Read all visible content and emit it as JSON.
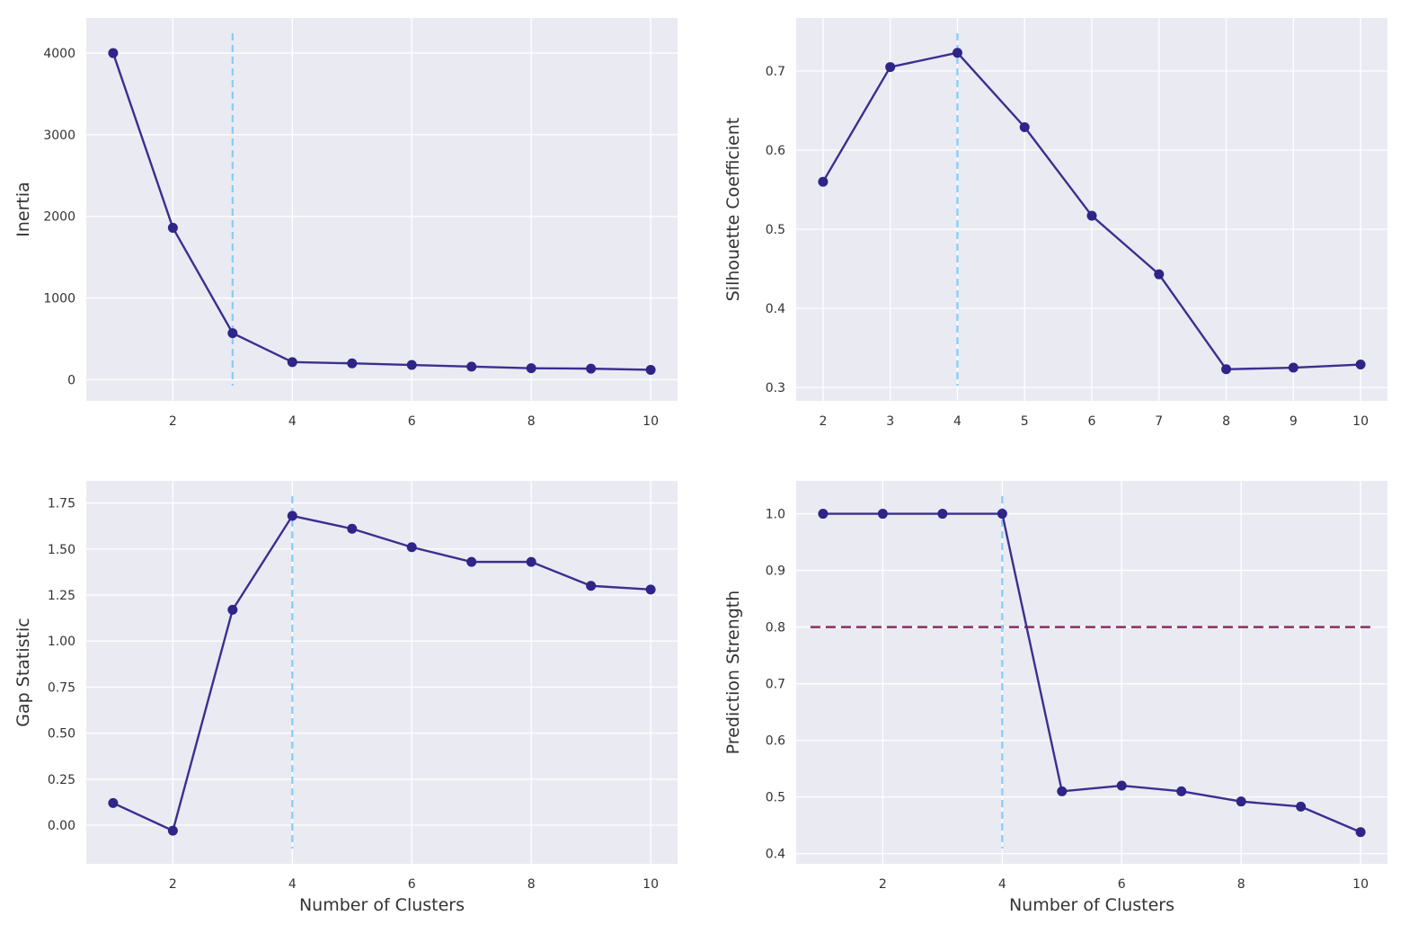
{
  "chart_data": [
    {
      "type": "line",
      "panel": "top-left",
      "x": [
        1,
        2,
        3,
        4,
        5,
        6,
        7,
        8,
        9,
        10
      ],
      "values": [
        4000,
        1860,
        570,
        215,
        200,
        180,
        160,
        140,
        135,
        120
      ],
      "xticks": [
        "2",
        "4",
        "6",
        "8",
        "10"
      ],
      "yticks": [
        "0",
        "1000",
        "2000",
        "3000",
        "4000"
      ],
      "xlabel": "",
      "ylabel": "Inertia",
      "xlim": [
        0.55,
        10.45
      ],
      "ylim": [
        -260,
        4430
      ],
      "grid": true,
      "colors": {
        "line": "#3b2f8f",
        "marker": "#2f2487",
        "vline": "#87cefa",
        "background": "#eaeaf2"
      },
      "vline_x": 3,
      "hline_y": null
    },
    {
      "type": "line",
      "panel": "top-right",
      "x": [
        2,
        3,
        4,
        5,
        6,
        7,
        8,
        9,
        10
      ],
      "values": [
        0.56,
        0.705,
        0.723,
        0.629,
        0.517,
        0.443,
        0.323,
        0.325,
        0.329
      ],
      "xticks": [
        "2",
        "3",
        "4",
        "5",
        "6",
        "7",
        "8",
        "9",
        "10"
      ],
      "yticks": [
        "0.3",
        "0.4",
        "0.5",
        "0.6",
        "0.7"
      ],
      "xlabel": "",
      "ylabel": "Silhouette Coefficient",
      "xlim": [
        1.6,
        10.4
      ],
      "ylim": [
        0.283,
        0.767
      ],
      "grid": true,
      "colors": {
        "line": "#3b2f8f",
        "marker": "#2f2487",
        "vline": "#87cefa",
        "background": "#eaeaf2"
      },
      "vline_x": 4,
      "hline_y": null
    },
    {
      "type": "line",
      "panel": "bottom-left",
      "x": [
        1,
        2,
        3,
        4,
        5,
        6,
        7,
        8,
        9,
        10
      ],
      "values": [
        0.12,
        -0.03,
        1.17,
        1.68,
        1.61,
        1.51,
        1.43,
        1.43,
        1.3,
        1.28
      ],
      "xticks": [
        "2",
        "4",
        "6",
        "8",
        "10"
      ],
      "yticks": [
        "0.00",
        "0.25",
        "0.50",
        "0.75",
        "1.00",
        "1.25",
        "1.50",
        "1.75"
      ],
      "xlabel": "Number of Clusters",
      "ylabel": "Gap Statistic",
      "xlim": [
        0.55,
        10.45
      ],
      "ylim": [
        -0.21,
        1.87
      ],
      "grid": true,
      "colors": {
        "line": "#3b2f8f",
        "marker": "#2f2487",
        "vline": "#87cefa",
        "background": "#eaeaf2"
      },
      "vline_x": 4,
      "hline_y": null
    },
    {
      "type": "line",
      "panel": "bottom-right",
      "x": [
        1,
        2,
        3,
        4,
        5,
        6,
        7,
        8,
        9,
        10
      ],
      "values": [
        1.0,
        1.0,
        1.0,
        1.0,
        0.51,
        0.52,
        0.51,
        0.492,
        0.483,
        0.438
      ],
      "xticks": [
        "2",
        "4",
        "6",
        "8",
        "10"
      ],
      "yticks": [
        "0.4",
        "0.5",
        "0.6",
        "0.7",
        "0.8",
        "0.9",
        "1.0"
      ],
      "xlabel": "Number of Clusters",
      "ylabel": "Prediction Strength",
      "xlim": [
        0.55,
        10.45
      ],
      "ylim": [
        0.382,
        1.058
      ],
      "grid": true,
      "colors": {
        "line": "#3b2f8f",
        "marker": "#2f2487",
        "vline": "#87cefa",
        "hline": "#8b2f5f",
        "background": "#eaeaf2"
      },
      "vline_x": 4,
      "hline_y": 0.8
    }
  ]
}
